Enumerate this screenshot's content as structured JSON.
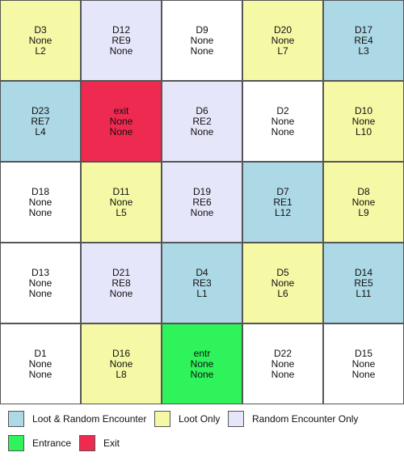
{
  "colors": {
    "loot_random": "#add8e6",
    "loot_only": "#f5f9a6",
    "random_only": "#e6e6fa",
    "entrance": "#2ef35a",
    "exit": "#ee2a51",
    "empty": "#ffffff"
  },
  "grid": {
    "rows": [
      [
        {
          "name": "D3",
          "encounter": "None",
          "loot": "L2",
          "type": "loot_only"
        },
        {
          "name": "D12",
          "encounter": "RE9",
          "loot": "None",
          "type": "random_only"
        },
        {
          "name": "D9",
          "encounter": "None",
          "loot": "None",
          "type": "empty"
        },
        {
          "name": "D20",
          "encounter": "None",
          "loot": "L7",
          "type": "loot_only"
        },
        {
          "name": "D17",
          "encounter": "RE4",
          "loot": "L3",
          "type": "loot_random"
        }
      ],
      [
        {
          "name": "D23",
          "encounter": "RE7",
          "loot": "L4",
          "type": "loot_random"
        },
        {
          "name": "exit",
          "encounter": "None",
          "loot": "None",
          "type": "exit"
        },
        {
          "name": "D6",
          "encounter": "RE2",
          "loot": "None",
          "type": "random_only"
        },
        {
          "name": "D2",
          "encounter": "None",
          "loot": "None",
          "type": "empty"
        },
        {
          "name": "D10",
          "encounter": "None",
          "loot": "L10",
          "type": "loot_only"
        }
      ],
      [
        {
          "name": "D18",
          "encounter": "None",
          "loot": "None",
          "type": "empty"
        },
        {
          "name": "D11",
          "encounter": "None",
          "loot": "L5",
          "type": "loot_only"
        },
        {
          "name": "D19",
          "encounter": "RE6",
          "loot": "None",
          "type": "random_only"
        },
        {
          "name": "D7",
          "encounter": "RE1",
          "loot": "L12",
          "type": "loot_random"
        },
        {
          "name": "D8",
          "encounter": "None",
          "loot": "L9",
          "type": "loot_only"
        }
      ],
      [
        {
          "name": "D13",
          "encounter": "None",
          "loot": "None",
          "type": "empty"
        },
        {
          "name": "D21",
          "encounter": "RE8",
          "loot": "None",
          "type": "random_only"
        },
        {
          "name": "D4",
          "encounter": "RE3",
          "loot": "L1",
          "type": "loot_random"
        },
        {
          "name": "D5",
          "encounter": "None",
          "loot": "L6",
          "type": "loot_only"
        },
        {
          "name": "D14",
          "encounter": "RE5",
          "loot": "L11",
          "type": "loot_random"
        }
      ],
      [
        {
          "name": "D1",
          "encounter": "None",
          "loot": "None",
          "type": "empty"
        },
        {
          "name": "D16",
          "encounter": "None",
          "loot": "L8",
          "type": "loot_only"
        },
        {
          "name": "entr",
          "encounter": "None",
          "loot": "None",
          "type": "entrance"
        },
        {
          "name": "D22",
          "encounter": "None",
          "loot": "None",
          "type": "empty"
        },
        {
          "name": "D15",
          "encounter": "None",
          "loot": "None",
          "type": "empty"
        }
      ]
    ]
  },
  "legend": [
    {
      "label": "Loot & Random Encounter",
      "type": "loot_random"
    },
    {
      "label": "Loot Only",
      "type": "loot_only"
    },
    {
      "label": "Random Encounter Only",
      "type": "random_only"
    },
    {
      "label": "Entrance",
      "type": "entrance"
    },
    {
      "label": "Exit",
      "type": "exit"
    }
  ]
}
